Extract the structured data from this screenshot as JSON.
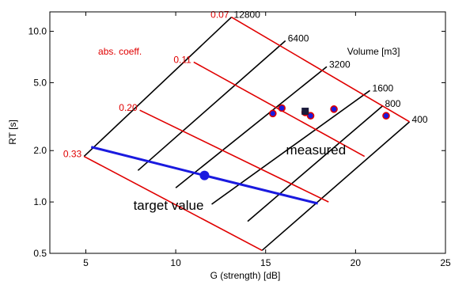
{
  "chart_data": {
    "type": "scatter",
    "xlabel": "G (strength) [dB]",
    "ylabel": "RT [s]",
    "xlim": [
      3,
      25
    ],
    "ylim": [
      0.5,
      13
    ],
    "yscale": "log",
    "xticks": [
      5,
      10,
      15,
      20,
      25
    ],
    "yticks": [
      0.5,
      1.0,
      2.0,
      5.0,
      10.0
    ],
    "xtick_labels": [
      "5",
      "10",
      "15",
      "20",
      "25"
    ],
    "ytick_labels": [
      "0.5",
      "1.0",
      "2.0",
      "5.0",
      "10.0"
    ],
    "grid": false,
    "colors": {
      "absorption_lines": "#e00000",
      "volume_lines": "#000000",
      "target": "#1a1adf",
      "measured_fill": "#1a1adf",
      "measured_edge": "#e00000"
    },
    "nomogram": {
      "volume_title": "Volume [m3]",
      "absorption_title": "abs. coeff.",
      "volume_lines": [
        {
          "label": "12800",
          "from": [
            4.9,
            1.85
          ],
          "to": [
            13.1,
            12.1
          ]
        },
        {
          "label": "6400",
          "from": [
            7.9,
            1.53
          ],
          "to": [
            16.1,
            8.8
          ]
        },
        {
          "label": "3200",
          "from": [
            10.0,
            1.21
          ],
          "to": [
            18.4,
            6.2
          ]
        },
        {
          "label": "1600",
          "from": [
            12.0,
            0.97
          ],
          "to": [
            20.8,
            4.5
          ]
        },
        {
          "label": "800",
          "from": [
            14.0,
            0.77
          ],
          "to": [
            21.5,
            3.65
          ]
        },
        {
          "label": "400",
          "from": [
            14.8,
            0.52
          ],
          "to": [
            23.0,
            2.95
          ]
        }
      ],
      "absorption_lines": [
        {
          "label": "0.07",
          "from": [
            13.1,
            12.1
          ],
          "to": [
            23.0,
            2.95
          ]
        },
        {
          "label": "0.11",
          "from": [
            11.0,
            6.6
          ],
          "to": [
            20.5,
            1.85
          ]
        },
        {
          "label": "0.20",
          "from": [
            8.0,
            3.45
          ],
          "to": [
            18.5,
            1.0
          ]
        },
        {
          "label": "0.33",
          "from": [
            4.9,
            1.85
          ],
          "to": [
            14.8,
            0.52
          ]
        }
      ]
    },
    "series": [
      {
        "name": "target value",
        "type": "line",
        "x": [
          5.3,
          11.6,
          17.9
        ],
        "y": [
          2.1,
          1.43,
          0.98
        ],
        "marker_index": 1
      },
      {
        "name": "measured",
        "type": "scatter",
        "x": [
          15.4,
          15.9,
          17.2,
          17.5,
          18.8,
          21.7
        ],
        "y": [
          3.3,
          3.55,
          3.35,
          3.2,
          3.5,
          3.2
        ]
      }
    ],
    "measured_square": {
      "x": 17.2,
      "y": 3.4
    },
    "annotations": [
      {
        "text": "measured",
        "x": 17.8,
        "y": 1.9
      },
      {
        "text": "target value",
        "x": 9.6,
        "y": 0.9
      }
    ]
  }
}
